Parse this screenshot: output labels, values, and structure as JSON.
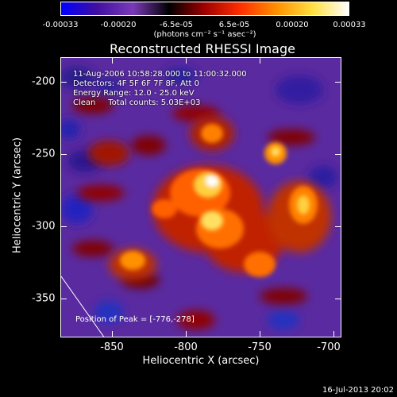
{
  "colorbar": {
    "tick_labels": [
      "-0.00033",
      "-0.00020",
      "-6.5e-05",
      "6.5e-05",
      "0.00020",
      "0.00033"
    ],
    "units": "(photons cm⁻² s⁻¹ asec⁻²)",
    "colors": [
      "#0000ff",
      "#4010a0",
      "#7a3ab8",
      "#000000",
      "#a00000",
      "#ff3000",
      "#ff9000",
      "#ffe040",
      "#ffffff"
    ]
  },
  "title": "Reconstructed RHESSI Image",
  "info": {
    "line1": "11-Aug-2006 10:58:28.000 to 11:00:32.000",
    "line2": "Detectors: 4F 5F 6F 7F 8F, Att 0",
    "line3": "Energy Range: 12.0 - 25.0 keV",
    "line4": "Clean     Total counts: 5.03E+03"
  },
  "peak_label": "Position of Peak = [-776,-278]",
  "x_axis": {
    "label": "Heliocentric X (arcsec)",
    "tick_labels": [
      "-850",
      "-800",
      "-750",
      "-700"
    ]
  },
  "y_axis": {
    "label": "Heliocentric Y (arcsec)",
    "tick_labels": [
      "-200",
      "-250",
      "-300",
      "-350"
    ]
  },
  "timestamp": "16-Jul-2013 20:02"
}
